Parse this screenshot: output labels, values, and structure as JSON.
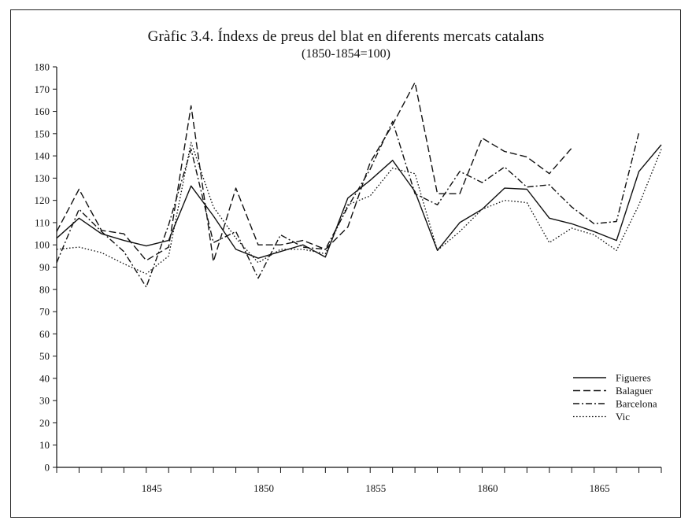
{
  "chart_data": {
    "type": "line",
    "title": "Gràfic 3.4. Índexs de preus del blat en diferents mercats catalans",
    "subtitle": "(1850-1854=100)",
    "xlabel": "",
    "ylabel": "",
    "xlim": [
      1841,
      1868
    ],
    "ylim": [
      0,
      180
    ],
    "y_ticks": [
      0,
      10,
      20,
      30,
      40,
      50,
      60,
      70,
      80,
      90,
      100,
      110,
      120,
      130,
      140,
      150,
      160,
      170,
      180
    ],
    "x_tick_labels": [
      1845,
      1850,
      1855,
      1860,
      1865
    ],
    "x_minor_ticks": [
      1841,
      1842,
      1843,
      1844,
      1845,
      1846,
      1847,
      1848,
      1849,
      1850,
      1851,
      1852,
      1853,
      1854,
      1855,
      1856,
      1857,
      1858,
      1859,
      1860,
      1861,
      1862,
      1863,
      1864,
      1865,
      1866,
      1867,
      1868
    ],
    "grid": false,
    "legend_position": "lower-right",
    "series": [
      {
        "name": "Figueres",
        "dash": "solid",
        "points": [
          [
            1841,
            103
          ],
          [
            1842,
            112
          ],
          [
            1843,
            105
          ],
          [
            1844,
            102
          ],
          [
            1845,
            99.5
          ],
          [
            1846,
            102
          ],
          [
            1847,
            126.5
          ],
          [
            1848,
            113
          ],
          [
            1849,
            98
          ],
          [
            1850,
            94
          ],
          [
            1851,
            97
          ],
          [
            1852,
            100
          ],
          [
            1853,
            94.5
          ],
          [
            1854,
            121
          ],
          [
            1855,
            129
          ],
          [
            1856,
            138
          ],
          [
            1857,
            124
          ],
          [
            1858,
            97.5
          ],
          [
            1859,
            110
          ],
          [
            1860,
            116
          ],
          [
            1861,
            125.5
          ],
          [
            1862,
            125
          ],
          [
            1863,
            112
          ],
          [
            1864,
            109.5
          ],
          [
            1865,
            106
          ],
          [
            1866,
            102
          ],
          [
            1867,
            133
          ],
          [
            1868,
            145
          ]
        ]
      },
      {
        "name": "Balaguer",
        "dash": "dashed",
        "points": [
          [
            1841,
            106
          ],
          [
            1842,
            125
          ],
          [
            1843,
            106.5
          ],
          [
            1844,
            105
          ],
          [
            1845,
            93
          ],
          [
            1846,
            99
          ],
          [
            1847,
            162.5
          ],
          [
            1848,
            92.5
          ],
          [
            1849,
            125.5
          ],
          [
            1850,
            100
          ],
          [
            1851,
            100
          ],
          [
            1852,
            102
          ],
          [
            1853,
            98
          ],
          [
            1854,
            108
          ],
          [
            1855,
            137
          ],
          [
            1856,
            154
          ],
          [
            1857,
            173
          ],
          [
            1858,
            123
          ],
          [
            1859,
            123
          ],
          [
            1860,
            148
          ],
          [
            1861,
            142
          ],
          [
            1862,
            139.5
          ],
          [
            1863,
            132
          ],
          [
            1864,
            143.5
          ]
        ]
      },
      {
        "name": "Barcelona",
        "dash": "dashdot",
        "points": [
          [
            1841,
            92
          ],
          [
            1842,
            116
          ],
          [
            1843,
            106
          ],
          [
            1844,
            97
          ],
          [
            1845,
            81
          ],
          [
            1846,
            109
          ],
          [
            1847,
            143
          ],
          [
            1848,
            101
          ],
          [
            1849,
            106
          ],
          [
            1850,
            85
          ],
          [
            1851,
            104.5
          ],
          [
            1852,
            99
          ],
          [
            1853,
            98
          ],
          [
            1854,
            117
          ],
          [
            1855,
            134
          ],
          [
            1856,
            155.5
          ],
          [
            1857,
            123
          ],
          [
            1858,
            118
          ],
          [
            1859,
            133
          ],
          [
            1860,
            128
          ],
          [
            1861,
            135
          ],
          [
            1862,
            126
          ],
          [
            1863,
            127
          ],
          [
            1864,
            117
          ],
          [
            1865,
            109.5
          ],
          [
            1866,
            110.5
          ],
          [
            1867,
            150.5
          ]
        ]
      },
      {
        "name": "Vic",
        "dash": "dotted",
        "points": [
          [
            1841,
            98
          ],
          [
            1842,
            99
          ],
          [
            1843,
            96.5
          ],
          [
            1844,
            91.5
          ],
          [
            1845,
            87
          ],
          [
            1846,
            95
          ],
          [
            1847,
            146
          ],
          [
            1848,
            117
          ],
          [
            1849,
            103
          ],
          [
            1850,
            92
          ],
          [
            1851,
            98
          ],
          [
            1852,
            98
          ],
          [
            1853,
            96
          ],
          [
            1854,
            118
          ],
          [
            1855,
            122
          ],
          [
            1856,
            134.5
          ],
          [
            1857,
            132
          ],
          [
            1858,
            97.5
          ],
          [
            1859,
            106
          ],
          [
            1860,
            116
          ],
          [
            1861,
            120
          ],
          [
            1862,
            119
          ],
          [
            1863,
            101
          ],
          [
            1864,
            107.5
          ],
          [
            1865,
            104.5
          ],
          [
            1866,
            97.5
          ],
          [
            1867,
            118
          ],
          [
            1868,
            143
          ]
        ]
      }
    ]
  }
}
